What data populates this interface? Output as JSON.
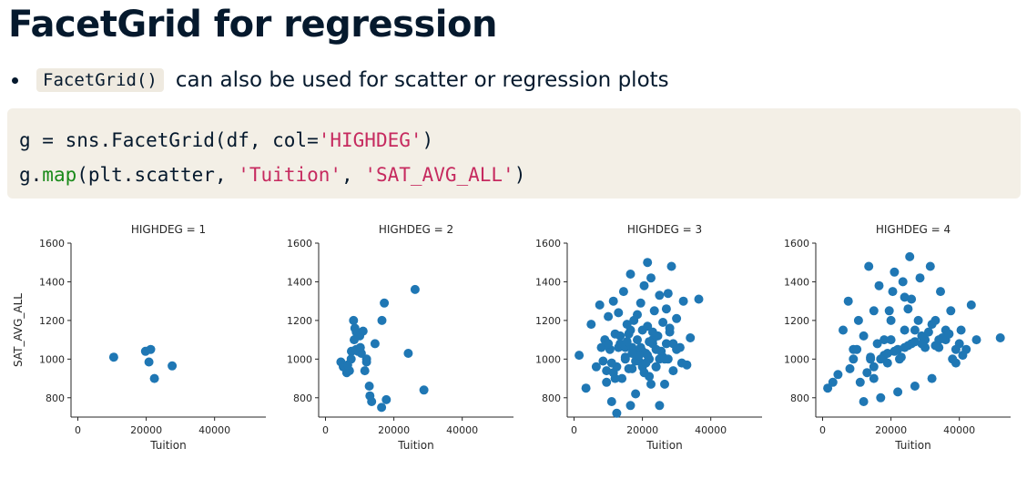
{
  "slide": {
    "title": "FacetGrid for regression",
    "bullet": {
      "code": "FacetGrid()",
      "text": "can also be used for scatter or regression plots"
    }
  },
  "code_block": {
    "line1": {
      "a": "g = sns.FacetGrid(df, col=",
      "b": "'HIGHDEG'",
      "c": ")"
    },
    "line2": {
      "a": "g.",
      "fn": "map",
      "b": "(plt.scatter, ",
      "s1": "'Tuition'",
      "c": ", ",
      "s2": "'SAT_AVG_ALL'",
      "d": ")"
    }
  },
  "colors": {
    "points": "#1f77b4",
    "code_bg": "#f3efe6",
    "string": "#c62a5f",
    "function": "#1a8a1a"
  },
  "chart_data": [
    {
      "type": "scatter",
      "title": "HIGHDEG = 1",
      "xlabel": "Tuition",
      "ylabel": "SAT_AVG_ALL",
      "xlim": [
        -2000,
        55000
      ],
      "ylim": [
        700,
        1600
      ],
      "xticks": [
        0,
        20000,
        40000
      ],
      "yticks": [
        800,
        1000,
        1200,
        1400,
        1600
      ],
      "x": [
        10500,
        19800,
        21300,
        20800,
        22400,
        27600
      ],
      "y": [
        1010,
        1040,
        1050,
        985,
        900,
        965
      ]
    },
    {
      "type": "scatter",
      "title": "HIGHDEG = 2",
      "xlabel": "Tuition",
      "ylabel": "",
      "xlim": [
        -2000,
        55000
      ],
      "ylim": [
        700,
        1600
      ],
      "xticks": [
        0,
        20000,
        40000
      ],
      "yticks": [
        800,
        1000,
        1200,
        1400,
        1600
      ],
      "x": [
        4500,
        5200,
        6200,
        7000,
        7600,
        8200,
        8600,
        9000,
        9500,
        10000,
        10500,
        11000,
        12000,
        12800,
        13500,
        14500,
        16500,
        17200,
        17800,
        16400,
        24200,
        26200,
        28800,
        11500,
        9000,
        7500,
        6500,
        13000,
        10200,
        12000,
        8400
      ],
      "y": [
        985,
        960,
        930,
        940,
        1040,
        1200,
        1160,
        1140,
        1040,
        1120,
        1030,
        1145,
        1000,
        860,
        780,
        1080,
        1200,
        1290,
        790,
        750,
        1030,
        1360,
        840,
        940,
        1050,
        1000,
        970,
        810,
        1060,
        985,
        1100
      ]
    },
    {
      "type": "scatter",
      "title": "HIGHDEG = 3",
      "xlabel": "Tuition",
      "ylabel": "",
      "xlim": [
        -2000,
        55000
      ],
      "ylim": [
        700,
        1600
      ],
      "xticks": [
        0,
        20000,
        40000
      ],
      "yticks": [
        800,
        1000,
        1200,
        1400,
        1600
      ],
      "x": [
        1500,
        3500,
        5000,
        6500,
        7500,
        8000,
        9000,
        9500,
        10000,
        10500,
        11000,
        11500,
        12000,
        12500,
        13000,
        13500,
        14000,
        14500,
        15000,
        15500,
        16000,
        16500,
        17000,
        17500,
        18000,
        18500,
        19000,
        19500,
        20000,
        20500,
        21000,
        21500,
        22000,
        22500,
        23000,
        23500,
        24000,
        24500,
        25000,
        25500,
        26000,
        26500,
        27000,
        27500,
        28000,
        28500,
        29000,
        30000,
        31000,
        32000,
        33000,
        34000,
        36500,
        8500,
        12500,
        16500,
        21500,
        25000,
        27500,
        19000,
        15000,
        13000,
        11000,
        9500,
        23000,
        29000,
        18000,
        20000,
        22000,
        24000,
        26000,
        14000,
        16000,
        18000,
        20000,
        22000,
        17000,
        19000,
        21000,
        15000,
        23000,
        25000,
        12000,
        10000,
        28000,
        30000,
        24000,
        17000,
        20500,
        13500,
        26500,
        31500,
        19500,
        15500,
        21500,
        22500,
        18500,
        16500,
        11500,
        27000
      ],
      "y": [
        1020,
        850,
        1180,
        960,
        1280,
        1060,
        1100,
        880,
        1220,
        1050,
        780,
        1300,
        1130,
        960,
        1240,
        1080,
        900,
        1350,
        1010,
        1180,
        950,
        1440,
        1060,
        1200,
        820,
        1100,
        990,
        1290,
        1150,
        1380,
        1030,
        1170,
        910,
        1420,
        1080,
        1250,
        960,
        1120,
        1330,
        1040,
        1190,
        870,
        1260,
        1000,
        1140,
        1480,
        940,
        1210,
        1060,
        1300,
        970,
        1110,
        1310,
        990,
        720,
        760,
        1500,
        760,
        1340,
        1020,
        1000,
        1060,
        980,
        940,
        1100,
        1080,
        1040,
        960,
        1000,
        1050,
        1010,
        1070,
        1130,
        990,
        1040,
        1090,
        950,
        1020,
        980,
        1060,
        1140,
        1000,
        900,
        1080,
        1160,
        1050,
        960,
        1030,
        930,
        1120,
        1000,
        980,
        1060,
        1090,
        1020,
        870,
        1230,
        1150,
        930,
        1080
      ]
    },
    {
      "type": "scatter",
      "title": "HIGHDEG = 4",
      "xlabel": "Tuition",
      "ylabel": "",
      "xlim": [
        -2000,
        55000
      ],
      "ylim": [
        700,
        1600
      ],
      "xticks": [
        0,
        20000,
        40000
      ],
      "yticks": [
        800,
        1000,
        1200,
        1400,
        1600
      ],
      "x": [
        1500,
        3000,
        4500,
        6000,
        7500,
        9000,
        10500,
        12000,
        13500,
        15000,
        16500,
        18000,
        19500,
        21000,
        22500,
        24000,
        25500,
        27000,
        28500,
        30000,
        31500,
        33000,
        34500,
        36000,
        37500,
        39000,
        40500,
        42000,
        43500,
        45000,
        52000,
        8000,
        10000,
        12000,
        14000,
        16000,
        18000,
        20000,
        22000,
        24000,
        26000,
        28000,
        30000,
        32000,
        34000,
        36000,
        38000,
        40000,
        11000,
        13000,
        15000,
        17000,
        19000,
        21000,
        23000,
        25000,
        27000,
        29000,
        31000,
        33000,
        35000,
        37000,
        39000,
        41000,
        9000,
        14000,
        19000,
        24000,
        29000,
        34000,
        17000,
        22000,
        27000,
        32000,
        20000,
        25000,
        15000,
        26000,
        23500,
        20500
      ],
      "y": [
        850,
        880,
        920,
        1150,
        1300,
        1050,
        1200,
        780,
        1480,
        900,
        1380,
        1100,
        1250,
        1450,
        1000,
        1320,
        1530,
        1150,
        1420,
        1060,
        1480,
        1200,
        1350,
        1100,
        1250,
        980,
        1150,
        1050,
        1280,
        1100,
        1110,
        950,
        1050,
        1120,
        1000,
        1080,
        1020,
        1100,
        1050,
        1150,
        1080,
        1200,
        1100,
        1180,
        1060,
        1150,
        1000,
        1080,
        880,
        930,
        960,
        1000,
        980,
        1040,
        1010,
        1070,
        1090,
        1120,
        1140,
        1070,
        1110,
        1130,
        1050,
        1020,
        1000,
        1010,
        1030,
        1060,
        1080,
        1100,
        800,
        830,
        860,
        900,
        1200,
        1260,
        1250,
        1310,
        1400,
        1350
      ]
    }
  ]
}
